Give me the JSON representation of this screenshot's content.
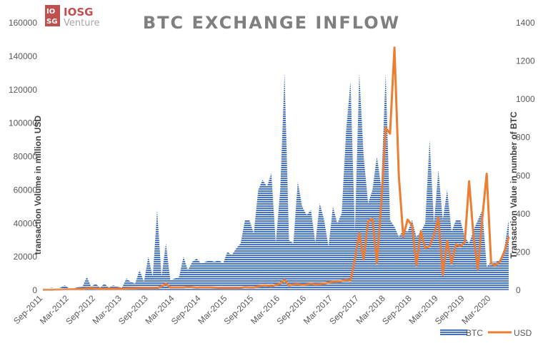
{
  "logo": {
    "mark_top": "IO",
    "mark_bottom": "SG",
    "name": "IOSG",
    "sub": "Venture",
    "color": "#c0504d"
  },
  "chart_data": {
    "type": "area",
    "title": "BTC EXCHANGE INFLOW",
    "ylabel_left": "transaction Volume in million USD",
    "ylabel_right": "Transaction Value in number of BTC",
    "ylim_left": [
      0,
      160000
    ],
    "ylim_right": [
      0,
      1400
    ],
    "yticks_left": [
      "0",
      "20000",
      "40000",
      "60000",
      "80000",
      "100000",
      "120000",
      "140000",
      "160000"
    ],
    "yticks_right": [
      "0",
      "200",
      "400",
      "600",
      "800",
      "1000",
      "1200",
      "1400"
    ],
    "xtick_labels": [
      "Sep-2011",
      "Mar-2012",
      "Sep-2012",
      "Mar-2013",
      "Sep-2013",
      "Mar-2014",
      "Sep-2014",
      "Mar-2015",
      "Sep-2015",
      "Mar-2016",
      "Sep-2016",
      "Mar-2017",
      "Sep-2017",
      "Mar-2018",
      "Sep-2018",
      "Mar-2019",
      "Sep-2019",
      "Mar-2020"
    ],
    "x_start": "Sep-2011",
    "grid": false,
    "legend_position": "bottom-right",
    "colors": {
      "btc": "#4472c4",
      "usd": "#ed7d31"
    },
    "series": [
      {
        "name": "BTC",
        "type": "area",
        "axis": "left",
        "values": [
          500,
          1000,
          1500,
          1000,
          1500,
          3000,
          1000,
          1200,
          1800,
          2000,
          8000,
          2000,
          4000,
          1500,
          4000,
          1500,
          3000,
          2000,
          1500,
          7000,
          5000,
          4000,
          12000,
          5000,
          20000,
          8000,
          48000,
          8000,
          28000,
          6000,
          7000,
          8000,
          20000,
          12000,
          17000,
          19000,
          16000,
          17000,
          18000,
          17000,
          18000,
          16000,
          23000,
          21000,
          25000,
          28000,
          42000,
          42000,
          34000,
          60000,
          66000,
          62000,
          70000,
          28000,
          60000,
          130000,
          30000,
          28000,
          65000,
          50000,
          45000,
          48000,
          28000,
          52000,
          42000,
          26000,
          50000,
          40000,
          46000,
          95000,
          125000,
          35000,
          130000,
          80000,
          52000,
          60000,
          80000,
          62000,
          130000,
          42000,
          38000,
          32000,
          36000,
          35000,
          42000,
          32000,
          35000,
          40000,
          90000,
          40000,
          72000,
          42000,
          60000,
          35000,
          42000,
          42000,
          32000,
          28000,
          36000,
          42000,
          48000,
          14000,
          17000,
          17000,
          18000,
          25000,
          42000
        ]
      },
      {
        "name": "USD",
        "type": "line",
        "axis": "right",
        "values": [
          2,
          2,
          2,
          3,
          3,
          4,
          4,
          5,
          6,
          7,
          10,
          10,
          9,
          8,
          8,
          8,
          8,
          8,
          8,
          9,
          10,
          10,
          12,
          12,
          12,
          12,
          12,
          20,
          35,
          15,
          15,
          15,
          15,
          18,
          16,
          14,
          15,
          15,
          15,
          14,
          13,
          12,
          12,
          12,
          12,
          13,
          16,
          15,
          15,
          20,
          25,
          25,
          22,
          28,
          35,
          55,
          25,
          30,
          32,
          28,
          30,
          35,
          30,
          32,
          35,
          40,
          45,
          45,
          48,
          55,
          50,
          160,
          300,
          160,
          360,
          375,
          140,
          450,
          850,
          820,
          1270,
          600,
          280,
          370,
          340,
          130,
          310,
          220,
          230,
          290,
          380,
          80,
          260,
          140,
          240,
          230,
          250,
          570,
          280,
          110,
          380,
          610,
          140,
          130,
          150,
          200,
          280
        ]
      }
    ]
  }
}
